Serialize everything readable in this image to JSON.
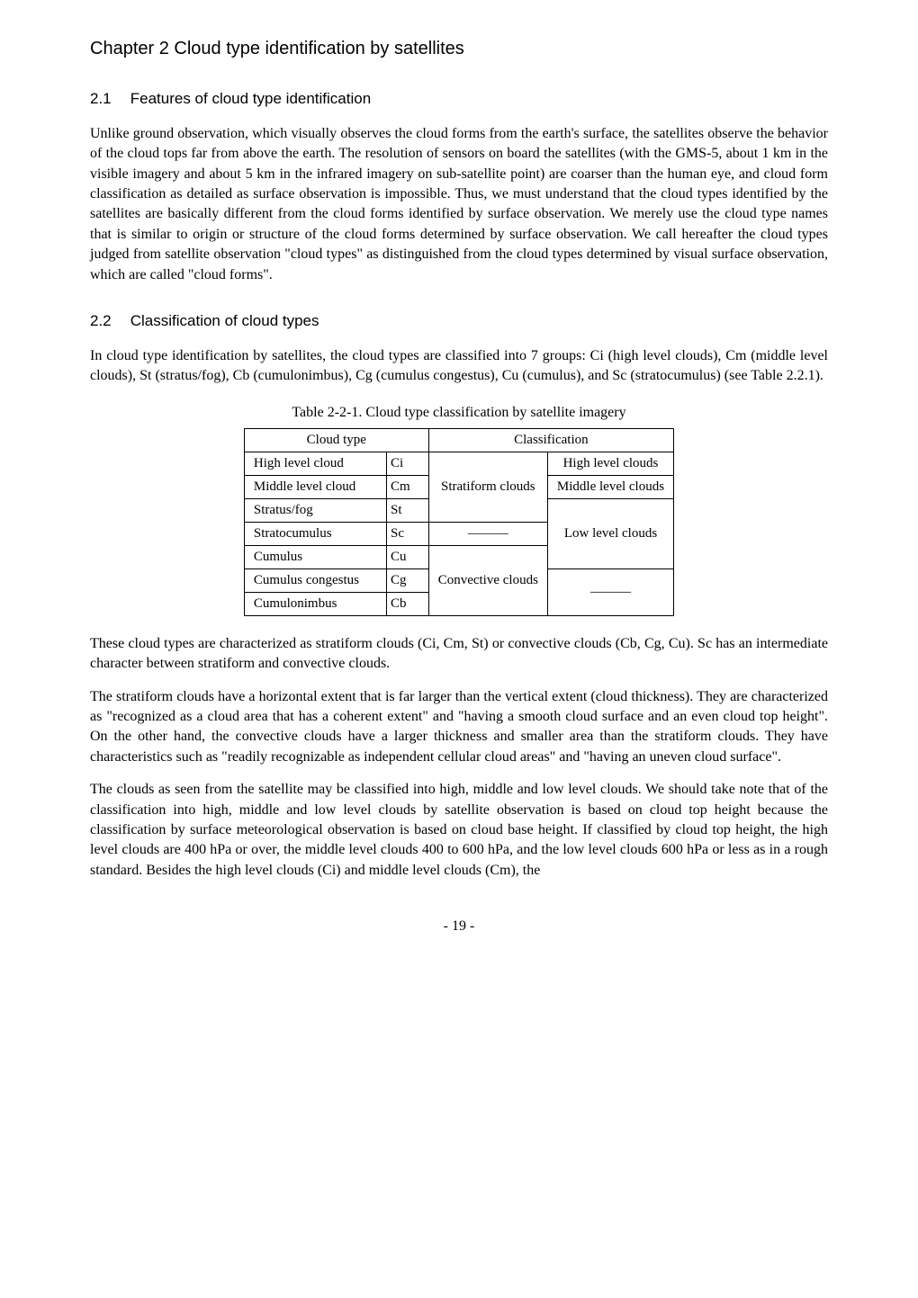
{
  "chapter_title": "Chapter 2    Cloud type identification by satellites",
  "sec21": {
    "num": "2.1",
    "title": "Features of cloud type identification"
  },
  "sec22": {
    "num": "2.2",
    "title": "Classification of cloud types"
  },
  "para1": "Unlike ground observation, which visually observes the cloud forms from the earth's surface, the satellites observe the behavior of the cloud tops far from above the earth.  The resolution of sensors on board the satellites (with the GMS-5, about 1 km in the visible imagery and about 5 km in the infrared imagery on sub-satellite point) are coarser than the human eye, and cloud form classification as detailed as surface observation is impossible.  Thus, we must understand that the cloud types identified by the satellites are basically different from the cloud forms identified by surface observation.  We merely use the cloud type names that is similar to origin or structure of the cloud forms determined by surface observation.  We call hereafter the cloud types judged from satellite observation \"cloud types\" as distinguished from the cloud types determined by visual surface observation, which are called \"cloud forms\".",
  "para2": "In cloud type identification by satellites, the cloud types are classified into 7 groups: Ci (high level clouds), Cm (middle level clouds), St (stratus/fog), Cb (cumulonimbus), Cg (cumulus congestus), Cu (cumulus), and Sc (stratocumulus) (see Table 2.2.1).",
  "table_caption": "Table 2-2-1.    Cloud type classification by satellite imagery",
  "table": {
    "header": {
      "c1": "Cloud type",
      "c2": "Classification"
    },
    "rows": [
      {
        "name": "High level cloud",
        "code": "Ci"
      },
      {
        "name": "Middle level cloud",
        "code": "Cm"
      },
      {
        "name": "Stratus/fog",
        "code": "St"
      },
      {
        "name": "Stratocumulus",
        "code": "Sc"
      },
      {
        "name": "Cumulus",
        "code": "Cu"
      },
      {
        "name": "Cumulus congestus",
        "code": "Cg"
      },
      {
        "name": "Cumulonimbus",
        "code": "Cb"
      }
    ],
    "class1": {
      "stratiform": "Stratiform clouds",
      "dash": "———",
      "convective": "Convective clouds"
    },
    "class2": {
      "high": "High level clouds",
      "middle": "Middle level clouds",
      "low": "Low level clouds",
      "dash": "———"
    }
  },
  "para3": "These cloud types are characterized as stratiform clouds (Ci, Cm, St) or convective clouds (Cb, Cg, Cu).  Sc has an intermediate character between stratiform and convective clouds.",
  "para4": "The stratiform clouds have a horizontal extent that is far larger than the vertical extent (cloud thickness).  They are characterized as \"recognized as a cloud area that has a coherent extent\" and \"having a smooth cloud surface and an even cloud top height\".  On the other hand, the convective clouds have a larger thickness and smaller area than the stratiform clouds.  They have characteristics such as \"readily recognizable as independent cellular cloud areas\" and \"having an uneven cloud surface\".",
  "para5": "The clouds as seen from the satellite may be classified into high, middle and low level clouds.  We should take note that of the classification into high, middle and low level clouds by satellite observation is based on cloud top height because the classification by surface meteorological observation is based on cloud base height.  If classified by cloud top height, the high level clouds are 400 hPa or over, the middle level clouds 400 to 600 hPa, and the low level clouds 600 hPa or less as in a rough standard.  Besides the high level clouds (Ci) and middle level clouds (Cm), the",
  "pagenum": "- 19 -"
}
